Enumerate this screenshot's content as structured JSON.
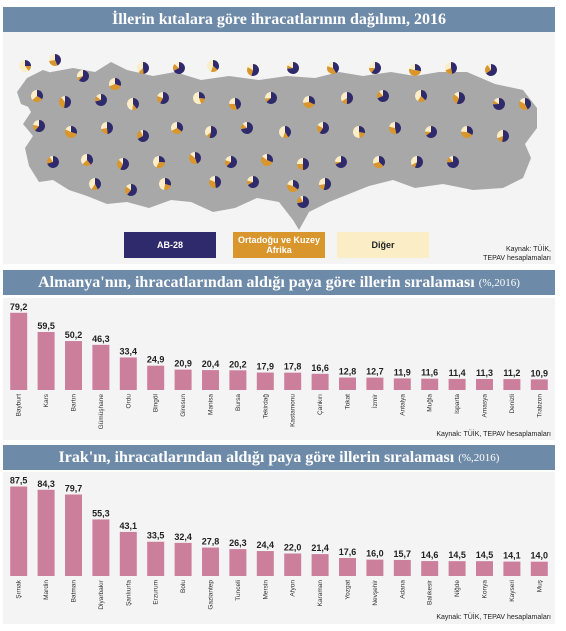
{
  "map_section": {
    "title": "İllerin kıtalara göre ihracatlarının dağılımı, 2016",
    "legend": [
      {
        "label": "AB-28",
        "color": "#2e2a6b",
        "text_color": "#ffffff"
      },
      {
        "label": "Ortadoğu ve Kuzey Afrika",
        "color": "#d9962c",
        "text_color": "#ffffff"
      },
      {
        "label": "Diğer",
        "color": "#fbeec6",
        "text_color": "#222222"
      }
    ],
    "source": "Kaynak: TÜİK,\nTEPAV hesaplamaları",
    "map_color": "#a8a8a8"
  },
  "chart_data": [
    {
      "type": "bar",
      "title": "Almanya'nın, ihracatlarından aldığı paya göre illerin sıralaması",
      "unit": "(%,2016)",
      "categories": [
        "Bayburt",
        "Kars",
        "Bartın",
        "Gümüşhane",
        "Ordu",
        "Bingöl",
        "Giresun",
        "Manisa",
        "Bursa",
        "Tekirdağ",
        "Kastamonu",
        "Çankırı",
        "Tokat",
        "İzmir",
        "Antalya",
        "Muğla",
        "Isparta",
        "Amasya",
        "Denizli",
        "Trabzon"
      ],
      "values": [
        79.2,
        59.5,
        50.2,
        46.3,
        33.4,
        24.9,
        20.9,
        20.4,
        20.2,
        17.9,
        17.8,
        16.6,
        12.8,
        12.7,
        11.9,
        11.6,
        11.4,
        11.3,
        11.2,
        10.9
      ],
      "value_labels": [
        "79,2",
        "59,5",
        "50,2",
        "46,3",
        "33,4",
        "24,9",
        "20,9",
        "20,4",
        "20,2",
        "17,9",
        "17,8",
        "16,6",
        "12,8",
        "12,7",
        "11,9",
        "11,6",
        "11,4",
        "11,3",
        "11,2",
        "10,9"
      ],
      "ylim": [
        0,
        80
      ],
      "bar_color": "#cc7f9b",
      "source": "Kaynak: TÜİK, TEPAV hesaplamaları"
    },
    {
      "type": "bar",
      "title": "Irak'ın, ihracatlarından aldığı paya göre illerin sıralaması",
      "unit": "(%,2016)",
      "categories": [
        "Şırnak",
        "Mardin",
        "Batman",
        "Diyarbakır",
        "Şanlıurfa",
        "Erzurum",
        "Bolu",
        "Gaziantep",
        "Tunceli",
        "Mersin",
        "Afyon",
        "Karaman",
        "Yozgat",
        "Nevşehir",
        "Adana",
        "Balıkesir",
        "Niğde",
        "Konya",
        "Kayseri",
        "Muş"
      ],
      "values": [
        87.5,
        84.3,
        79.7,
        55.3,
        43.1,
        33.5,
        32.4,
        27.8,
        26.3,
        24.4,
        22.0,
        21.4,
        17.6,
        16.0,
        15.7,
        14.6,
        14.5,
        14.5,
        14.1,
        14.0
      ],
      "value_labels": [
        "87,5",
        "84,3",
        "79,7",
        "55,3",
        "43,1",
        "33,5",
        "32,4",
        "27,8",
        "26,3",
        "24,4",
        "22,0",
        "21,4",
        "17,6",
        "16,0",
        "15,7",
        "14,6",
        "14,5",
        "14,5",
        "14,1",
        "14,0"
      ],
      "ylim": [
        0,
        88
      ],
      "bar_color": "#cc7f9b",
      "source": "Kaynak: TÜİK, TEPAV hesaplamaları"
    }
  ]
}
